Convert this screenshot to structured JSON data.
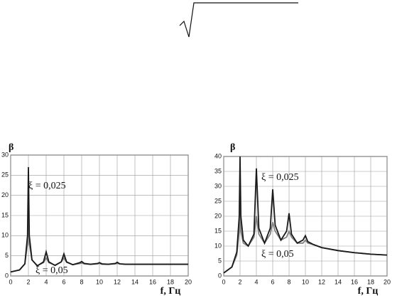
{
  "chart_data": [
    {
      "type": "line",
      "y_label": "β",
      "x_label": "f, Гц",
      "annotations": [
        "ξ = 0,025",
        "ξ = 0,05"
      ],
      "grid": true,
      "xlim": [
        0,
        20
      ],
      "ylim": [
        0,
        30
      ],
      "xticks": [
        0,
        2,
        4,
        6,
        8,
        10,
        12,
        14,
        16,
        18,
        20
      ],
      "yticks": [
        0,
        5,
        10,
        15,
        20,
        25,
        30
      ],
      "x": [
        0,
        1,
        1.6,
        1.9,
        2,
        2.1,
        2.4,
        3,
        3.7,
        4,
        4.3,
        5,
        5.7,
        6,
        6.3,
        7,
        7.8,
        8,
        8.3,
        9,
        9.8,
        10,
        10.3,
        11,
        11.8,
        12,
        12.3,
        13,
        14,
        16,
        18,
        20
      ],
      "series": [
        {
          "color": "#1a1a1a",
          "values": [
            1,
            1.5,
            3,
            10,
            27,
            10,
            4,
            2.5,
            3.5,
            6,
            3.5,
            2.6,
            3.5,
            5.5,
            3.5,
            2.8,
            3.3,
            3.6,
            3.1,
            2.9,
            3.1,
            3.3,
            3.0,
            2.9,
            3.1,
            3.4,
            3.0,
            2.9,
            2.9,
            2.9,
            2.9,
            2.9
          ]
        },
        {
          "color": "#808080",
          "values": [
            1,
            1.5,
            3,
            8,
            16,
            8,
            4,
            2.6,
            3.3,
            4.5,
            3.3,
            2.7,
            3.5,
            4.5,
            3.4,
            2.8,
            3.1,
            3.2,
            3.0,
            2.9,
            3.0,
            3.1,
            2.9,
            2.9,
            3.0,
            3.1,
            3.0,
            2.9,
            2.9,
            2.9,
            2.9,
            2.9
          ]
        }
      ]
    },
    {
      "type": "line",
      "y_label": "β",
      "x_label": "f, Гц",
      "annotations": [
        "ξ = 0,025",
        "ξ = 0,05"
      ],
      "grid": true,
      "xlim": [
        0,
        20
      ],
      "ylim": [
        0,
        40
      ],
      "xticks": [
        0,
        2,
        4,
        6,
        8,
        10,
        12,
        14,
        16,
        18,
        20
      ],
      "yticks": [
        0,
        5,
        10,
        15,
        20,
        25,
        30,
        35,
        40
      ],
      "x": [
        0,
        1,
        1.6,
        1.9,
        2,
        2.1,
        2.4,
        3,
        3.7,
        4,
        4.3,
        5,
        5.7,
        6,
        6.3,
        7,
        7.7,
        8,
        8.3,
        9,
        9.7,
        10,
        10.3,
        11,
        12,
        14,
        16,
        18,
        20
      ],
      "series": [
        {
          "color": "#1a1a1a",
          "values": [
            1,
            3,
            8,
            20,
            40,
            20,
            12,
            10,
            14,
            36,
            16,
            11,
            16,
            29,
            17,
            12,
            15,
            21,
            14,
            11,
            12,
            13.5,
            11.5,
            10.5,
            9.5,
            8.5,
            7.8,
            7.3,
            7
          ]
        },
        {
          "color": "#808080",
          "values": [
            1,
            3,
            7,
            15,
            27,
            15,
            11,
            10,
            13,
            20,
            14,
            11,
            14,
            18,
            15,
            12,
            13,
            15,
            13,
            11,
            11,
            12,
            11,
            10.5,
            9.5,
            8.5,
            7.8,
            7.3,
            7
          ]
        }
      ]
    }
  ]
}
